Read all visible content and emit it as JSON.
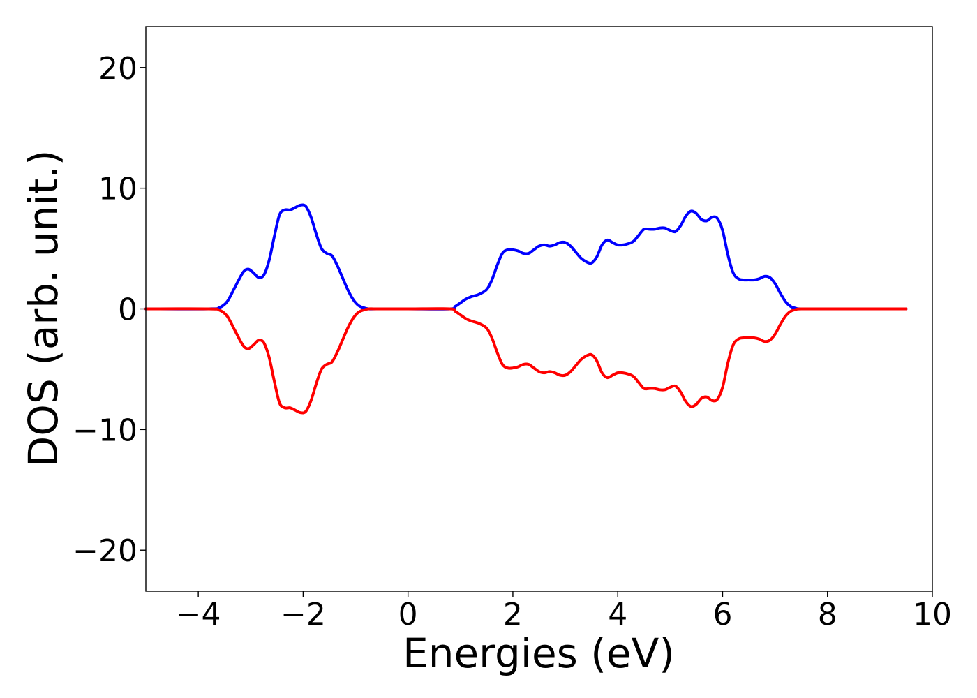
{
  "chart_data": {
    "type": "line",
    "title": "",
    "xlabel": "Energies (eV)",
    "ylabel": "DOS (arb. unit.)",
    "xlim": [
      -5.0,
      10.0
    ],
    "ylim": [
      -23.4,
      23.4
    ],
    "xticks": [
      -4,
      -2,
      0,
      2,
      4,
      6,
      8,
      10
    ],
    "xtick_labels": [
      "−4",
      "−2",
      "0",
      "2",
      "4",
      "6",
      "8",
      "10"
    ],
    "yticks": [
      -20,
      -10,
      0,
      10,
      20
    ],
    "ytick_labels": [
      "−20",
      "−10",
      "0",
      "10",
      "20"
    ],
    "grid": false,
    "legend": "none",
    "series": [
      {
        "color": "#0000ff",
        "x": [
          -5.0,
          -3.8,
          -3.6,
          -3.45,
          -3.3,
          -3.15,
          -3.05,
          -2.95,
          -2.85,
          -2.75,
          -2.65,
          -2.55,
          -2.45,
          -2.35,
          -2.25,
          -2.15,
          -2.05,
          -1.95,
          -1.85,
          -1.75,
          -1.65,
          -1.55,
          -1.45,
          -1.35,
          -1.25,
          -1.15,
          -1.05,
          -0.95,
          -0.85,
          -0.75,
          -0.6,
          0.0,
          0.8,
          0.9,
          1.0,
          1.1,
          1.2,
          1.35,
          1.5,
          1.6,
          1.7,
          1.8,
          1.9,
          2.0,
          2.1,
          2.2,
          2.3,
          2.4,
          2.5,
          2.6,
          2.7,
          2.8,
          2.9,
          3.0,
          3.1,
          3.2,
          3.3,
          3.4,
          3.5,
          3.6,
          3.7,
          3.8,
          3.9,
          4.0,
          4.1,
          4.2,
          4.3,
          4.4,
          4.5,
          4.6,
          4.7,
          4.8,
          4.9,
          5.0,
          5.1,
          5.2,
          5.3,
          5.4,
          5.5,
          5.6,
          5.7,
          5.8,
          5.9,
          6.0,
          6.1,
          6.2,
          6.3,
          6.4,
          6.5,
          6.6,
          6.7,
          6.8,
          6.9,
          7.0,
          7.1,
          7.2,
          7.3,
          7.4,
          7.5,
          8.0,
          9.5
        ],
        "y": [
          0.0,
          0.0,
          0.1,
          0.6,
          1.8,
          3.0,
          3.3,
          3.0,
          2.6,
          2.8,
          4.0,
          6.0,
          7.8,
          8.2,
          8.2,
          8.4,
          8.6,
          8.5,
          7.6,
          6.2,
          5.0,
          4.6,
          4.4,
          3.6,
          2.6,
          1.6,
          0.8,
          0.3,
          0.1,
          0.0,
          0.0,
          0.0,
          0.0,
          0.2,
          0.5,
          0.8,
          1.0,
          1.2,
          1.6,
          2.4,
          3.6,
          4.6,
          4.9,
          4.9,
          4.8,
          4.6,
          4.6,
          4.9,
          5.2,
          5.3,
          5.2,
          5.3,
          5.5,
          5.5,
          5.2,
          4.7,
          4.2,
          3.9,
          3.8,
          4.3,
          5.3,
          5.7,
          5.5,
          5.3,
          5.3,
          5.4,
          5.6,
          6.1,
          6.6,
          6.6,
          6.6,
          6.7,
          6.7,
          6.5,
          6.4,
          6.9,
          7.7,
          8.1,
          7.9,
          7.4,
          7.3,
          7.6,
          7.5,
          6.5,
          4.5,
          3.0,
          2.5,
          2.4,
          2.4,
          2.4,
          2.5,
          2.7,
          2.6,
          2.1,
          1.3,
          0.6,
          0.2,
          0.05,
          0.0,
          0.0,
          0.0
        ]
      },
      {
        "color": "#ff0000",
        "x": [
          -5.0,
          -3.8,
          -3.6,
          -3.45,
          -3.3,
          -3.15,
          -3.05,
          -2.95,
          -2.85,
          -2.75,
          -2.65,
          -2.55,
          -2.45,
          -2.35,
          -2.25,
          -2.15,
          -2.05,
          -1.95,
          -1.85,
          -1.75,
          -1.65,
          -1.55,
          -1.45,
          -1.35,
          -1.25,
          -1.15,
          -1.05,
          -0.95,
          -0.85,
          -0.75,
          -0.6,
          0.0,
          0.8,
          0.9,
          1.0,
          1.1,
          1.2,
          1.35,
          1.5,
          1.6,
          1.7,
          1.8,
          1.9,
          2.0,
          2.1,
          2.2,
          2.3,
          2.4,
          2.5,
          2.6,
          2.7,
          2.8,
          2.9,
          3.0,
          3.1,
          3.2,
          3.3,
          3.4,
          3.5,
          3.6,
          3.7,
          3.8,
          3.9,
          4.0,
          4.1,
          4.2,
          4.3,
          4.4,
          4.5,
          4.6,
          4.7,
          4.8,
          4.9,
          5.0,
          5.1,
          5.2,
          5.3,
          5.4,
          5.5,
          5.6,
          5.7,
          5.8,
          5.9,
          6.0,
          6.1,
          6.2,
          6.3,
          6.4,
          6.5,
          6.6,
          6.7,
          6.8,
          6.9,
          7.0,
          7.1,
          7.2,
          7.3,
          7.4,
          7.5,
          8.0,
          9.5
        ],
        "y": [
          0.0,
          0.0,
          -0.1,
          -0.6,
          -1.8,
          -3.0,
          -3.3,
          -3.0,
          -2.6,
          -2.8,
          -4.0,
          -6.0,
          -7.8,
          -8.2,
          -8.2,
          -8.4,
          -8.6,
          -8.5,
          -7.6,
          -6.2,
          -5.0,
          -4.6,
          -4.4,
          -3.6,
          -2.6,
          -1.6,
          -0.8,
          -0.3,
          -0.1,
          0.0,
          0.0,
          0.0,
          0.0,
          -0.2,
          -0.5,
          -0.8,
          -1.0,
          -1.2,
          -1.6,
          -2.4,
          -3.6,
          -4.6,
          -4.9,
          -4.9,
          -4.8,
          -4.6,
          -4.6,
          -4.9,
          -5.2,
          -5.3,
          -5.2,
          -5.3,
          -5.5,
          -5.5,
          -5.2,
          -4.7,
          -4.2,
          -3.9,
          -3.8,
          -4.3,
          -5.3,
          -5.7,
          -5.5,
          -5.3,
          -5.3,
          -5.4,
          -5.6,
          -6.1,
          -6.6,
          -6.6,
          -6.6,
          -6.7,
          -6.7,
          -6.5,
          -6.4,
          -6.9,
          -7.7,
          -8.1,
          -7.9,
          -7.4,
          -7.3,
          -7.6,
          -7.5,
          -6.5,
          -4.5,
          -3.0,
          -2.5,
          -2.4,
          -2.4,
          -2.4,
          -2.5,
          -2.7,
          -2.6,
          -2.1,
          -1.3,
          -0.6,
          -0.2,
          -0.05,
          0.0,
          0.0,
          0.0
        ]
      }
    ]
  }
}
